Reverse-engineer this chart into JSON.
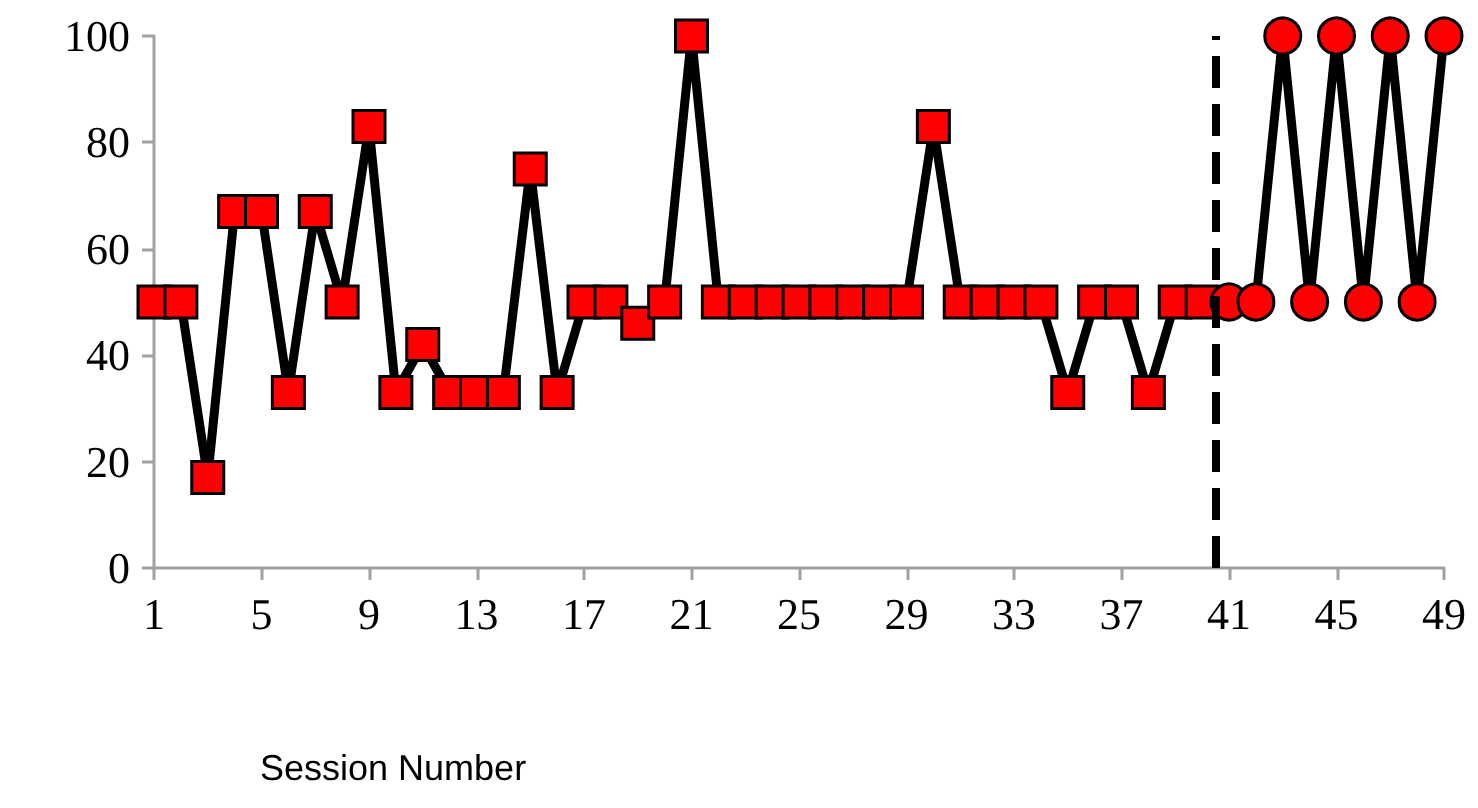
{
  "chart_data": {
    "type": "line",
    "xlabel": "Session Number",
    "series": [
      {
        "x": [
          1,
          2,
          3,
          4,
          5,
          6,
          7,
          8,
          9,
          10,
          11,
          12,
          13,
          14,
          15,
          16,
          17,
          18,
          19,
          20,
          21,
          22,
          23,
          24,
          25,
          26,
          27,
          28,
          29,
          30,
          31,
          32,
          33,
          34,
          35,
          36,
          37,
          38,
          39,
          40
        ],
        "values": [
          50,
          50,
          17,
          67,
          67,
          33,
          67,
          50,
          83,
          33,
          42,
          33,
          33,
          33,
          75,
          33,
          50,
          50,
          46,
          50,
          100,
          50,
          50,
          50,
          50,
          50,
          50,
          50,
          50,
          83,
          50,
          50,
          50,
          50,
          33,
          50,
          50,
          33,
          50,
          50
        ],
        "color": "#ff0000",
        "marker": "square"
      },
      {
        "x": [
          41,
          42,
          43,
          44,
          45,
          46,
          47,
          48,
          49
        ],
        "values": [
          50,
          50,
          100,
          50,
          100,
          50,
          100,
          50,
          100
        ],
        "color": "#ff0000",
        "marker": "circle"
      }
    ],
    "xlim": [
      1,
      49
    ],
    "xticks": [
      1,
      5,
      9,
      13,
      17,
      21,
      25,
      29,
      33,
      37,
      41,
      45,
      49
    ],
    "ylim": [
      0,
      100
    ],
    "yticks": [
      0,
      20,
      40,
      60,
      80,
      100
    ],
    "ref_lines": [
      {
        "axis": "x",
        "value": 40.5,
        "color": "#000000",
        "line_style": "dashed"
      }
    ],
    "grid": false,
    "line_style": "solid"
  }
}
